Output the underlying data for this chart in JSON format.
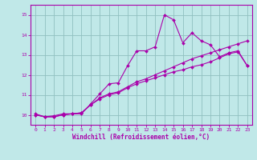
{
  "xlabel": "Windchill (Refroidissement éolien,°C)",
  "xlim": [
    -0.5,
    23.5
  ],
  "ylim": [
    9.5,
    15.5
  ],
  "xticks": [
    0,
    1,
    2,
    3,
    4,
    5,
    6,
    7,
    8,
    9,
    10,
    11,
    12,
    13,
    14,
    15,
    16,
    17,
    18,
    19,
    20,
    21,
    22,
    23
  ],
  "yticks": [
    10,
    11,
    12,
    13,
    14,
    15
  ],
  "bg_color": "#c0e8e8",
  "line_color": "#aa00aa",
  "grid_color": "#90c0c0",
  "line1_x": [
    0,
    1,
    2,
    3,
    4,
    5,
    6,
    7,
    8,
    9,
    10,
    11,
    12,
    13,
    14,
    15,
    16,
    17,
    18,
    19,
    20,
    21,
    22,
    23
  ],
  "line1_y": [
    10.05,
    9.9,
    9.95,
    10.05,
    10.05,
    10.05,
    10.55,
    11.05,
    11.55,
    11.6,
    12.45,
    13.2,
    13.2,
    13.4,
    15.0,
    14.75,
    13.6,
    14.1,
    13.7,
    13.5,
    12.9,
    13.1,
    13.2,
    12.45
  ],
  "line2_x": [
    0,
    1,
    2,
    3,
    4,
    5,
    6,
    7,
    8,
    9,
    10,
    11,
    12,
    13,
    14,
    15,
    16,
    17,
    18,
    19,
    20,
    21,
    22,
    23
  ],
  "line2_y": [
    10.0,
    9.9,
    9.9,
    10.0,
    10.05,
    10.1,
    10.5,
    10.85,
    11.05,
    11.15,
    11.4,
    11.65,
    11.8,
    12.0,
    12.2,
    12.4,
    12.6,
    12.8,
    12.95,
    13.1,
    13.25,
    13.4,
    13.55,
    13.7
  ],
  "line3_x": [
    0,
    1,
    2,
    3,
    4,
    5,
    6,
    7,
    8,
    9,
    10,
    11,
    12,
    13,
    14,
    15,
    16,
    17,
    18,
    19,
    20,
    21,
    22,
    23
  ],
  "line3_y": [
    10.0,
    9.9,
    9.9,
    10.0,
    10.05,
    10.1,
    10.5,
    10.8,
    11.0,
    11.1,
    11.35,
    11.55,
    11.7,
    11.85,
    12.0,
    12.15,
    12.25,
    12.4,
    12.5,
    12.65,
    12.85,
    13.05,
    13.15,
    12.45
  ],
  "marker": "D",
  "markersize": 2.0,
  "linewidth": 0.8
}
